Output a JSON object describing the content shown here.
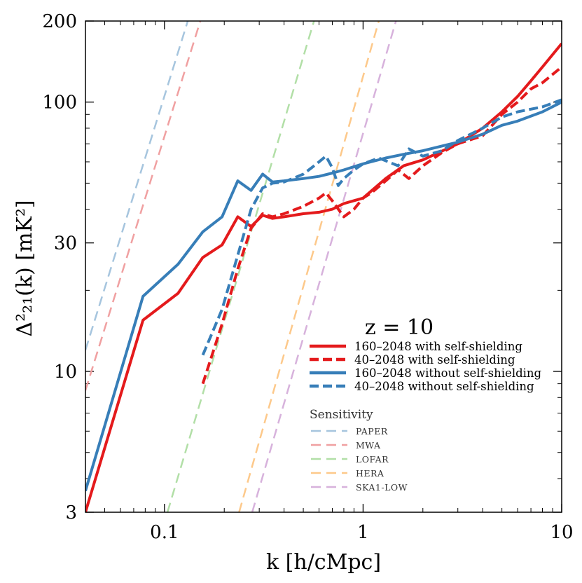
{
  "chart_data": {
    "type": "line",
    "xscale": "log",
    "yscale": "log",
    "xlim": [
      0.04,
      10
    ],
    "ylim": [
      3,
      200
    ],
    "xlabel": "k [h/cMpc]",
    "ylabel": "Δ²₂₁(k) [mK²]",
    "xticks": [
      {
        "value": 0.1,
        "label": "0.1"
      },
      {
        "value": 1,
        "label": "1"
      },
      {
        "value": 10,
        "label": "10"
      }
    ],
    "yticks": [
      {
        "value": 3,
        "label": "3"
      },
      {
        "value": 10,
        "label": "10"
      },
      {
        "value": 30,
        "label": "30"
      },
      {
        "value": 100,
        "label": "100"
      },
      {
        "value": 200,
        "label": "200"
      }
    ],
    "legend_title": "z = 10",
    "series": [
      {
        "name": "160–2048 with self-shielding",
        "color": "#e41a1c",
        "style": "solid",
        "x": [
          0.04,
          0.078,
          0.117,
          0.156,
          0.195,
          0.234,
          0.273,
          0.312,
          0.35,
          0.4,
          0.5,
          0.6,
          0.7,
          0.8,
          1.0,
          1.3,
          1.6,
          2.0,
          3.0,
          4.0,
          5.0,
          6.0,
          7.0,
          8.0,
          10.0
        ],
        "y": [
          3.0,
          15.5,
          19.5,
          26.5,
          29.5,
          37.5,
          34.5,
          38.0,
          37.0,
          37.5,
          38.5,
          39.0,
          40.0,
          42.0,
          44.0,
          52.0,
          58.0,
          61.0,
          70.0,
          80.0,
          92.0,
          105.0,
          120.0,
          135.0,
          165.0
        ]
      },
      {
        "name": "40–2048 with self-shielding",
        "color": "#e41a1c",
        "style": "dashed",
        "x": [
          0.156,
          0.195,
          0.234,
          0.273,
          0.312,
          0.35,
          0.4,
          0.5,
          0.6,
          0.65,
          0.7,
          0.8,
          0.9,
          1.0,
          1.1,
          1.3,
          1.5,
          1.7,
          2.0,
          2.5,
          3.0,
          4.0,
          5.0,
          6.0,
          7.0,
          8.0,
          10.0
        ],
        "y": [
          9.0,
          15.0,
          24.0,
          34.0,
          38.5,
          37.5,
          38.5,
          41.0,
          44.0,
          46.0,
          43.0,
          37.5,
          40.0,
          44.0,
          46.0,
          51.0,
          56.0,
          52.0,
          58.0,
          65.0,
          70.0,
          75.0,
          90.0,
          100.0,
          112.0,
          118.0,
          135.0
        ]
      },
      {
        "name": "160–2048 without self-shielding",
        "color": "#377eb8",
        "style": "solid",
        "x": [
          0.04,
          0.078,
          0.117,
          0.156,
          0.195,
          0.234,
          0.273,
          0.312,
          0.35,
          0.4,
          0.5,
          0.6,
          0.7,
          0.8,
          1.0,
          1.3,
          1.6,
          2.0,
          3.0,
          4.0,
          5.0,
          6.0,
          8.0,
          10.0
        ],
        "y": [
          3.6,
          19.0,
          25.0,
          33.0,
          37.5,
          51.0,
          47.0,
          54.0,
          50.5,
          51.0,
          52.0,
          53.0,
          54.5,
          56.0,
          59.0,
          62.0,
          64.0,
          66.0,
          71.0,
          76.0,
          82.0,
          85.0,
          92.0,
          100.0
        ]
      },
      {
        "name": "40–2048 without self-shielding",
        "color": "#377eb8",
        "style": "dashed",
        "x": [
          0.156,
          0.195,
          0.234,
          0.273,
          0.312,
          0.35,
          0.4,
          0.5,
          0.55,
          0.6,
          0.65,
          0.7,
          0.75,
          0.8,
          0.9,
          1.0,
          1.2,
          1.5,
          1.7,
          2.0,
          2.5,
          3.0,
          4.0,
          5.0,
          6.0,
          8.0,
          10.0
        ],
        "y": [
          11.5,
          17.0,
          27.0,
          40.0,
          48.0,
          50.0,
          50.5,
          54.0,
          57.0,
          60.0,
          63.0,
          57.0,
          49.0,
          52.0,
          56.0,
          59.0,
          62.0,
          58.0,
          67.0,
          63.0,
          66.0,
          72.0,
          80.0,
          88.0,
          92.0,
          96.0,
          102.0
        ]
      }
    ],
    "sensitivity": {
      "title": "Sensitivity",
      "curves": [
        {
          "name": "PAPER",
          "color": "#a6c5de",
          "x": [
            0.04,
            0.131
          ],
          "y": [
            12.0,
            200.0
          ]
        },
        {
          "name": "MWA",
          "color": "#f0a0a1",
          "x": [
            0.04,
            0.1515
          ],
          "y": [
            8.5,
            200.0
          ]
        },
        {
          "name": "LOFAR",
          "color": "#b2dfa7",
          "x": [
            0.1035,
            0.566
          ],
          "y": [
            3.0,
            200.0
          ]
        },
        {
          "name": "HERA",
          "color": "#fdc98b",
          "x": [
            0.2375,
            1.2
          ],
          "y": [
            3.0,
            200.0
          ]
        },
        {
          "name": "SKA1-LOW",
          "color": "#d7b2dc",
          "x": [
            0.2765,
            1.464
          ],
          "y": [
            3.0,
            200.0
          ]
        }
      ]
    }
  }
}
